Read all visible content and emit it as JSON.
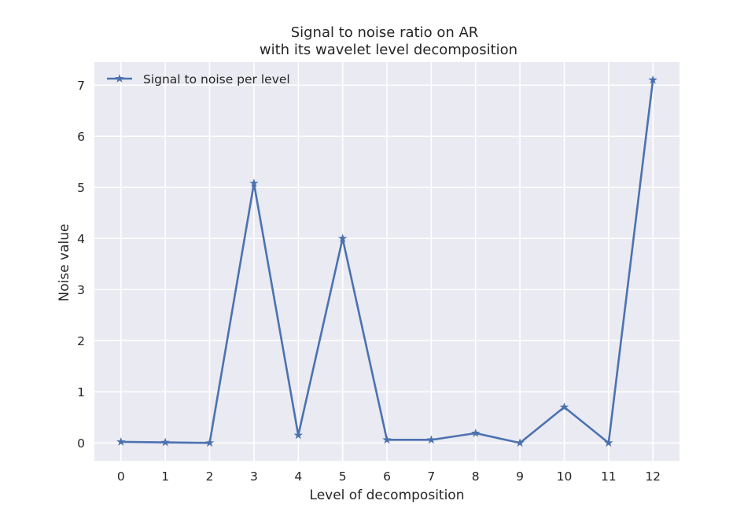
{
  "chart_data": {
    "type": "line",
    "title_line1": "Signal to noise ratio on AR",
    "title_line2": "with its wavelet level decomposition",
    "xlabel": "Level of decomposition",
    "ylabel": "Noise value",
    "xlim": [
      -0.6,
      12.6
    ],
    "ylim": [
      -0.35,
      7.45
    ],
    "xticks": [
      0,
      1,
      2,
      3,
      4,
      5,
      6,
      7,
      8,
      9,
      10,
      11,
      12
    ],
    "yticks": [
      0,
      1,
      2,
      3,
      4,
      5,
      6,
      7
    ],
    "grid": true,
    "legend_position": "upper-left",
    "series": [
      {
        "name": "Signal to noise per level",
        "marker": "star",
        "color": "#4c72b0",
        "x": [
          0,
          1,
          2,
          3,
          4,
          5,
          6,
          7,
          8,
          9,
          10,
          11,
          12
        ],
        "values": [
          0.02,
          0.01,
          0.0,
          5.08,
          0.15,
          4.0,
          0.06,
          0.06,
          0.19,
          0.0,
          0.7,
          0.0,
          7.1
        ]
      }
    ],
    "background_color": "#eaeaf2",
    "grid_color": "#ffffff"
  }
}
